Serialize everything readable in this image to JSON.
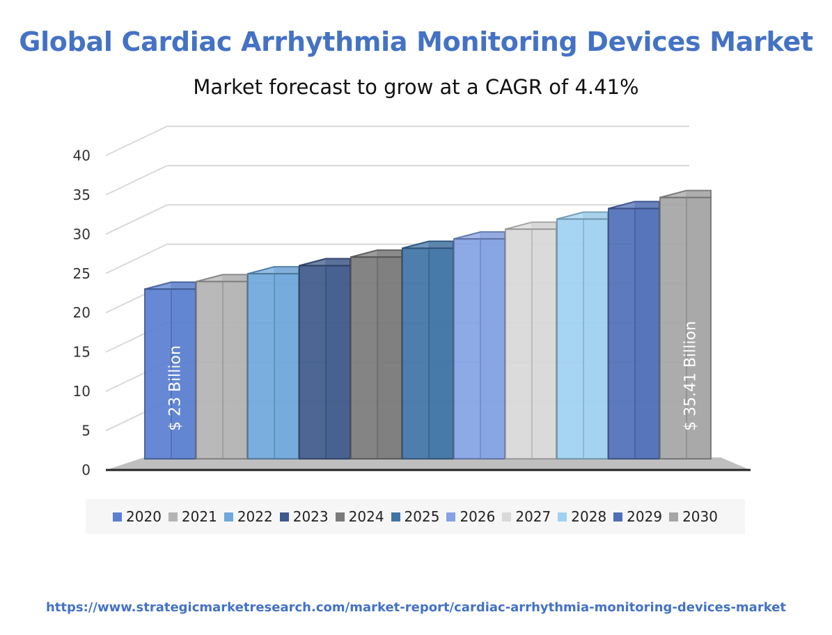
{
  "header": {
    "title": "Global Cardiac Arrhythmia Monitoring Devices Market",
    "subtitle": "Market forecast to grow at a CAGR of 4.41%"
  },
  "source_url": "https://www.strategicmarketresearch.com/market-report/cardiac-arrhythmia-monitoring-devices-market",
  "chart_data": {
    "type": "bar",
    "style": "3d-column",
    "title": "Global Cardiac Arrhythmia Monitoring Devices Market",
    "subtitle": "Market forecast to grow at a CAGR of 4.41%",
    "categories": [
      "2020",
      "2021",
      "2022",
      "2023",
      "2024",
      "2025",
      "2026",
      "2027",
      "2028",
      "2029",
      "2030"
    ],
    "values": [
      23,
      24.02,
      25.08,
      26.18,
      27.34,
      28.54,
      29.8,
      31.12,
      32.49,
      33.92,
      35.41
    ],
    "colors": [
      "#5b80d2",
      "#b4b4b4",
      "#6fa8dc",
      "#3e5a8c",
      "#7a7a7a",
      "#3f74a6",
      "#84a2e4",
      "#d9d9d9",
      "#9fd2f2",
      "#4f6fb8",
      "#a5a5a5"
    ],
    "yticks": [
      0,
      5,
      10,
      15,
      20,
      25,
      30,
      35,
      40
    ],
    "ylim": [
      0,
      40
    ],
    "grid": true,
    "legend": "bottom",
    "data_labels": [
      {
        "category": "2020",
        "text": "$ 23 Billion"
      },
      {
        "category": "2030",
        "text": "$ 35.41 Billion"
      }
    ]
  }
}
